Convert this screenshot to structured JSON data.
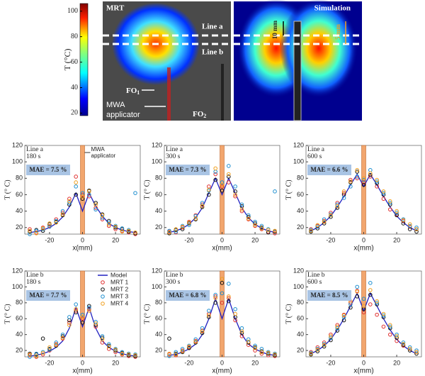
{
  "top": {
    "mrt": {
      "title": "MRT",
      "line_a": "Line a",
      "line_b": "Line b",
      "fo1": {
        "text": "FO",
        "sub": "1"
      },
      "applicator": [
        "MWA",
        "applicator"
      ],
      "fo2": {
        "text": "FO",
        "sub": "2"
      }
    },
    "colorbar": {
      "label": "T (°C)",
      "lim": [
        18,
        106
      ],
      "ticks": [
        20,
        40,
        60,
        80,
        100
      ]
    },
    "simulation": {
      "title": "Simulation",
      "dim1": "10 mm",
      "dim2": "5 mm"
    }
  },
  "chart_data": [
    {
      "type": "line",
      "label_lines": [
        "Line a",
        "180 s"
      ],
      "mae": "MAE = 7.5 %",
      "annotation": [
        "MWA",
        "applicator"
      ],
      "xlabel": "x(mm)",
      "ylabel": "T (° C)",
      "xlim": [
        -35,
        35
      ],
      "ylim": [
        12,
        120
      ],
      "xticks": [
        -20,
        0,
        20
      ],
      "yticks": [
        20,
        40,
        60,
        80,
        100,
        120
      ],
      "x": [
        -32,
        -28,
        -24,
        -20,
        -16,
        -12,
        -8,
        -4,
        0,
        4,
        8,
        12,
        16,
        20,
        24,
        28,
        32
      ],
      "series": [
        {
          "kind": "line",
          "color": "#2020c0",
          "values": [
            14,
            15,
            17,
            20,
            25,
            33,
            45,
            62,
            40,
            62,
            46,
            34,
            25,
            20,
            17,
            15,
            14
          ]
        },
        {
          "kind": "scatter",
          "color": "#e03030",
          "values": [
            18,
            14,
            20,
            22,
            30,
            38,
            55,
            82,
            60,
            58,
            44,
            30,
            22,
            18,
            16,
            14,
            12
          ]
        },
        {
          "kind": "scatter",
          "color": "#111111",
          "values": [
            15,
            17,
            16,
            24,
            27,
            35,
            48,
            60,
            55,
            65,
            50,
            36,
            28,
            20,
            18,
            15,
            13
          ]
        },
        {
          "kind": "scatter",
          "color": "#2090d0",
          "values": [
            12,
            16,
            18,
            21,
            28,
            40,
            50,
            70,
            62,
            60,
            42,
            32,
            26,
            22,
            19,
            17,
            62
          ]
        },
        {
          "kind": "scatter",
          "color": "#f0a020",
          "values": [
            16,
            13,
            19,
            25,
            26,
            36,
            52,
            75,
            58,
            64,
            48,
            35,
            24,
            21,
            15,
            16,
            14
          ]
        }
      ]
    },
    {
      "type": "line",
      "label_lines": [
        "Line a",
        "300 s"
      ],
      "mae": "MAE = 7.3 %",
      "xlabel": "x(mm)",
      "ylabel": "T (° C)",
      "xlim": [
        -35,
        35
      ],
      "ylim": [
        12,
        120
      ],
      "xticks": [
        -20,
        0,
        20
      ],
      "yticks": [
        20,
        40,
        60,
        80,
        100,
        120
      ],
      "x": [
        -32,
        -28,
        -24,
        -20,
        -16,
        -12,
        -8,
        -4,
        0,
        4,
        8,
        12,
        16,
        20,
        24,
        28,
        32
      ],
      "series": [
        {
          "kind": "line",
          "color": "#2020c0",
          "values": [
            14,
            16,
            19,
            24,
            32,
            44,
            62,
            80,
            60,
            80,
            62,
            44,
            32,
            24,
            19,
            16,
            14
          ]
        },
        {
          "kind": "scatter",
          "color": "#e03030",
          "values": [
            15,
            14,
            20,
            27,
            35,
            48,
            70,
            85,
            70,
            75,
            58,
            40,
            30,
            22,
            18,
            15,
            13
          ]
        },
        {
          "kind": "scatter",
          "color": "#111111",
          "values": [
            13,
            17,
            18,
            25,
            30,
            45,
            60,
            78,
            65,
            82,
            64,
            46,
            33,
            25,
            20,
            14,
            15
          ]
        },
        {
          "kind": "scatter",
          "color": "#2090d0",
          "values": [
            16,
            15,
            22,
            23,
            34,
            50,
            65,
            88,
            75,
            95,
            70,
            48,
            35,
            27,
            22,
            18,
            64
          ]
        },
        {
          "kind": "scatter",
          "color": "#f0a020",
          "values": [
            14,
            18,
            21,
            26,
            31,
            46,
            66,
            92,
            72,
            85,
            60,
            42,
            31,
            23,
            19,
            17,
            16
          ]
        }
      ]
    },
    {
      "type": "line",
      "label_lines": [
        "Line a",
        "600 s"
      ],
      "mae": "MAE = 6.6 %",
      "xlabel": "x(mm)",
      "ylabel": "T (° C)",
      "xlim": [
        -35,
        35
      ],
      "ylim": [
        12,
        120
      ],
      "xticks": [
        -20,
        0,
        20
      ],
      "yticks": [
        20,
        40,
        60,
        80,
        100,
        120
      ],
      "x": [
        -32,
        -28,
        -24,
        -20,
        -16,
        -12,
        -8,
        -4,
        0,
        4,
        8,
        12,
        16,
        20,
        24,
        28,
        32
      ],
      "series": [
        {
          "kind": "line",
          "color": "#2020c0",
          "values": [
            16,
            20,
            26,
            34,
            45,
            58,
            72,
            85,
            70,
            85,
            72,
            58,
            45,
            34,
            26,
            20,
            16
          ]
        },
        {
          "kind": "scatter",
          "color": "#e03030",
          "values": [
            18,
            22,
            28,
            38,
            50,
            62,
            78,
            80,
            75,
            82,
            70,
            55,
            42,
            36,
            28,
            21,
            18
          ]
        },
        {
          "kind": "scatter",
          "color": "#111111",
          "values": [
            15,
            19,
            25,
            33,
            44,
            60,
            75,
            88,
            72,
            84,
            74,
            60,
            48,
            35,
            25,
            18,
            15
          ]
        },
        {
          "kind": "scatter",
          "color": "#2090d0",
          "values": [
            17,
            21,
            30,
            36,
            48,
            56,
            70,
            82,
            78,
            90,
            76,
            62,
            50,
            38,
            30,
            22,
            20
          ]
        },
        {
          "kind": "scatter",
          "color": "#f0a020",
          "values": [
            16,
            23,
            27,
            35,
            46,
            64,
            76,
            90,
            80,
            86,
            78,
            64,
            52,
            40,
            29,
            24,
            18
          ]
        }
      ]
    },
    {
      "type": "line",
      "label_lines": [
        "Line b",
        "180 s"
      ],
      "mae": "MAE = 7.7 %",
      "xlabel": "x(mm)",
      "ylabel": "T (° C)",
      "xlim": [
        -35,
        35
      ],
      "ylim": [
        12,
        120
      ],
      "xticks": [
        -20,
        0,
        20
      ],
      "yticks": [
        20,
        40,
        60,
        80,
        100,
        120
      ],
      "legend": "top-right",
      "x": [
        -32,
        -28,
        -24,
        -20,
        -16,
        -12,
        -8,
        -4,
        0,
        4,
        8,
        12,
        16,
        20,
        24,
        28,
        32
      ],
      "series": [
        {
          "name": "Model",
          "kind": "line",
          "color": "#2020c0",
          "values": [
            13,
            14,
            16,
            19,
            24,
            32,
            48,
            74,
            50,
            74,
            48,
            32,
            24,
            19,
            16,
            14,
            13
          ]
        },
        {
          "name": "MRT 1",
          "kind": "scatter",
          "color": "#e03030",
          "values": [
            14,
            12,
            15,
            20,
            28,
            35,
            55,
            70,
            60,
            72,
            50,
            30,
            22,
            18,
            15,
            13,
            12
          ]
        },
        {
          "name": "MRT 2",
          "kind": "scatter",
          "color": "#111111",
          "values": [
            16,
            15,
            35,
            22,
            26,
            38,
            58,
            68,
            55,
            76,
            52,
            36,
            26,
            20,
            17,
            14,
            13
          ]
        },
        {
          "name": "MRT 3",
          "kind": "scatter",
          "color": "#2090d0",
          "values": [
            12,
            16,
            18,
            21,
            30,
            40,
            62,
            78,
            65,
            74,
            56,
            38,
            28,
            22,
            18,
            16,
            15
          ]
        },
        {
          "name": "MRT 4",
          "kind": "scatter",
          "color": "#f0a020",
          "values": [
            15,
            13,
            17,
            24,
            27,
            36,
            52,
            72,
            62,
            70,
            54,
            34,
            25,
            21,
            16,
            15,
            14
          ]
        }
      ]
    },
    {
      "type": "line",
      "label_lines": [
        "Line b",
        "300 s"
      ],
      "mae": "MAE = 6.8 %",
      "xlabel": "x(mm)",
      "ylabel": "T (° C)",
      "xlim": [
        -35,
        35
      ],
      "ylim": [
        12,
        120
      ],
      "xticks": [
        -20,
        0,
        20
      ],
      "yticks": [
        20,
        40,
        60,
        80,
        100,
        120
      ],
      "x": [
        -32,
        -28,
        -24,
        -20,
        -16,
        -12,
        -8,
        -4,
        0,
        4,
        8,
        12,
        16,
        20,
        24,
        28,
        32
      ],
      "series": [
        {
          "kind": "line",
          "color": "#2020c0",
          "values": [
            14,
            15,
            18,
            22,
            28,
            40,
            60,
            85,
            60,
            85,
            60,
            40,
            28,
            22,
            18,
            15,
            14
          ]
        },
        {
          "kind": "scatter",
          "color": "#e03030",
          "values": [
            15,
            14,
            20,
            24,
            32,
            45,
            66,
            88,
            80,
            86,
            58,
            38,
            27,
            20,
            16,
            14,
            13
          ]
        },
        {
          "kind": "scatter",
          "color": "#111111",
          "values": [
            35,
            16,
            18,
            23,
            30,
            42,
            62,
            80,
            105,
            82,
            62,
            42,
            30,
            24,
            19,
            16,
            14
          ]
        },
        {
          "kind": "scatter",
          "color": "#2090d0",
          "values": [
            13,
            18,
            22,
            26,
            34,
            48,
            70,
            90,
            92,
            104,
            72,
            48,
            34,
            26,
            22,
            18,
            16
          ]
        },
        {
          "kind": "scatter",
          "color": "#f0a020",
          "values": [
            16,
            15,
            19,
            25,
            31,
            44,
            64,
            86,
            110,
            88,
            66,
            44,
            31,
            23,
            18,
            17,
            15
          ]
        }
      ]
    },
    {
      "type": "line",
      "label_lines": [
        "Line b",
        "600 s"
      ],
      "mae": "MAE = 8.5 %",
      "xlabel": "x(mm)",
      "ylabel": "T (° C)",
      "xlim": [
        -35,
        35
      ],
      "ylim": [
        12,
        120
      ],
      "xticks": [
        -20,
        0,
        20
      ],
      "yticks": [
        20,
        40,
        60,
        80,
        100,
        120
      ],
      "x": [
        -32,
        -28,
        -24,
        -20,
        -16,
        -12,
        -8,
        -4,
        0,
        4,
        8,
        12,
        16,
        20,
        24,
        28,
        32
      ],
      "series": [
        {
          "kind": "line",
          "color": "#2020c0",
          "values": [
            16,
            20,
            26,
            34,
            46,
            60,
            76,
            92,
            70,
            92,
            76,
            60,
            46,
            34,
            26,
            20,
            16
          ]
        },
        {
          "kind": "scatter",
          "color": "#e03030",
          "values": [
            18,
            24,
            30,
            40,
            52,
            65,
            80,
            95,
            68,
            78,
            65,
            50,
            40,
            32,
            26,
            22,
            18
          ]
        },
        {
          "kind": "scatter",
          "color": "#111111",
          "values": [
            15,
            19,
            25,
            33,
            45,
            58,
            74,
            88,
            72,
            90,
            78,
            62,
            48,
            36,
            27,
            20,
            16
          ]
        },
        {
          "kind": "scatter",
          "color": "#2090d0",
          "values": [
            17,
            22,
            28,
            36,
            48,
            62,
            78,
            100,
            85,
            105,
            80,
            64,
            50,
            40,
            30,
            24,
            20
          ]
        },
        {
          "kind": "scatter",
          "color": "#f0a020",
          "values": [
            16,
            21,
            27,
            38,
            50,
            64,
            82,
            94,
            76,
            96,
            82,
            66,
            52,
            38,
            28,
            22,
            18
          ]
        }
      ]
    }
  ]
}
